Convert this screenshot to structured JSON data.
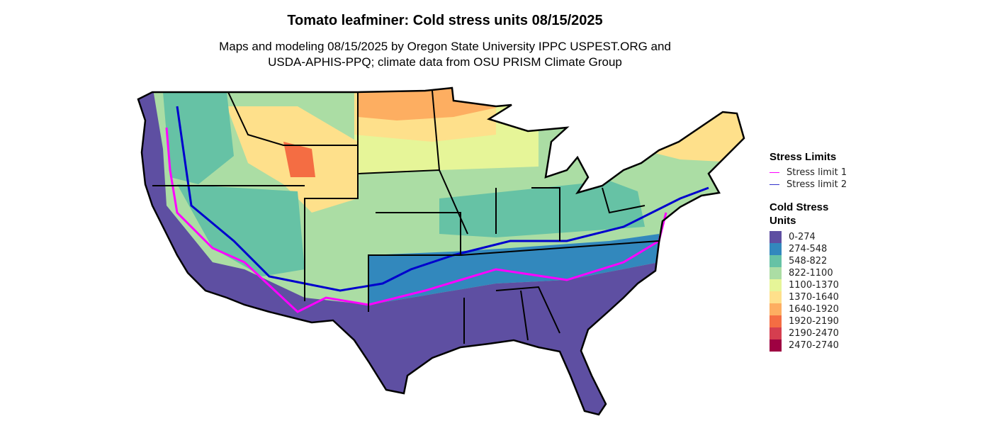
{
  "title": "Tomato leafminer: Cold stress units 08/15/2025",
  "subtitle_lines": [
    "Maps and modeling 08/15/2025 by Oregon State University IPPC USPEST.ORG and",
    "USDA-APHIS-PPQ; climate data from OSU PRISM Climate Group"
  ],
  "legend": {
    "stress_title": "Stress Limits",
    "stress_limits": [
      {
        "label": "Stress limit 1",
        "color": "#FF00FF"
      },
      {
        "label": "Stress limit 2",
        "color": "#0000CD"
      }
    ],
    "units_title_lines": [
      "Cold Stress",
      "Units"
    ],
    "classes": [
      {
        "label": "0-274",
        "color": "#5E4FA2"
      },
      {
        "label": "274-548",
        "color": "#3288BD"
      },
      {
        "label": "548-822",
        "color": "#66C2A5"
      },
      {
        "label": "822-1100",
        "color": "#ABDDA4"
      },
      {
        "label": "1100-1370",
        "color": "#E6F598"
      },
      {
        "label": "1370-1640",
        "color": "#FEE08B"
      },
      {
        "label": "1640-1920",
        "color": "#FDAE61"
      },
      {
        "label": "1920-2190",
        "color": "#F46D43"
      },
      {
        "label": "2190-2470",
        "color": "#D53E4F"
      },
      {
        "label": "2470-2740",
        "color": "#9E0142"
      }
    ]
  }
}
